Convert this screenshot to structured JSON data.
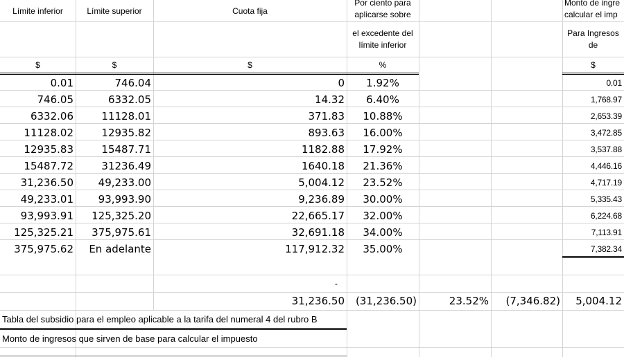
{
  "headers": {
    "limite_inferior": "Límite inferior",
    "limite_superior": "Límite superior",
    "cuota_fija": "Cuota fija",
    "por_ciento_line1": "Por ciento para",
    "por_ciento_line2": "aplicarse sobre",
    "excedente_line1": "el excedente del",
    "excedente_line2": "límite inferior",
    "monto_line1": "Monto de ingre",
    "monto_line2": "calcular el imp",
    "para_ingresos_line1": "Para Ingresos",
    "para_ingresos_line2": "de"
  },
  "units": {
    "col_a": "$",
    "col_b": "$",
    "col_c": "$",
    "col_d": "%",
    "col_g": "$"
  },
  "rows": [
    {
      "inf": "0.01",
      "sup": "746.04",
      "cuota": "0",
      "pct": "1.92%",
      "g": "0.01"
    },
    {
      "inf": "746.05",
      "sup": "6332.05",
      "cuota": "14.32",
      "pct": "6.40%",
      "g": "1,768.97"
    },
    {
      "inf": "6332.06",
      "sup": "11128.01",
      "cuota": "371.83",
      "pct": "10.88%",
      "g": "2,653.39"
    },
    {
      "inf": "11128.02",
      "sup": "12935.82",
      "cuota": "893.63",
      "pct": "16.00%",
      "g": "3,472.85"
    },
    {
      "inf": "12935.83",
      "sup": "15487.71",
      "cuota": "1182.88",
      "pct": "17.92%",
      "g": "3,537.88"
    },
    {
      "inf": "15487.72",
      "sup": "31236.49",
      "cuota": "1640.18",
      "pct": "21.36%",
      "g": "4,446.16"
    },
    {
      "inf": "31,236.50",
      "sup": "49,233.00",
      "cuota": "5,004.12",
      "pct": "23.52%",
      "g": "4,717.19"
    },
    {
      "inf": "49,233.01",
      "sup": "93,993.90",
      "cuota": "9,236.89",
      "pct": "30.00%",
      "g": "5,335.43"
    },
    {
      "inf": "93,993.91",
      "sup": "125,325.20",
      "cuota": "22,665.17",
      "pct": "32.00%",
      "g": "6,224.68"
    },
    {
      "inf": "125,325.21",
      "sup": "375,975.61",
      "cuota": "32,691.18",
      "pct": "34.00%",
      "g": "7,113.91"
    },
    {
      "inf": "375,975.62",
      "sup": "En adelante",
      "cuota": "117,912.32",
      "pct": "35.00%",
      "g": "7,382.34"
    }
  ],
  "dash": "-",
  "calc_row": {
    "c": "31,236.50",
    "d": "(31,236.50)",
    "e": "23.52%",
    "f": "(7,346.82)",
    "g": "5,004.12"
  },
  "subsidio_title": "Tabla del subsidio para el empleo aplicable a la tarifa del numeral 4 del rubro B",
  "monto_ingresos": "Monto de ingresos que sirven de base para calcular el impuesto"
}
